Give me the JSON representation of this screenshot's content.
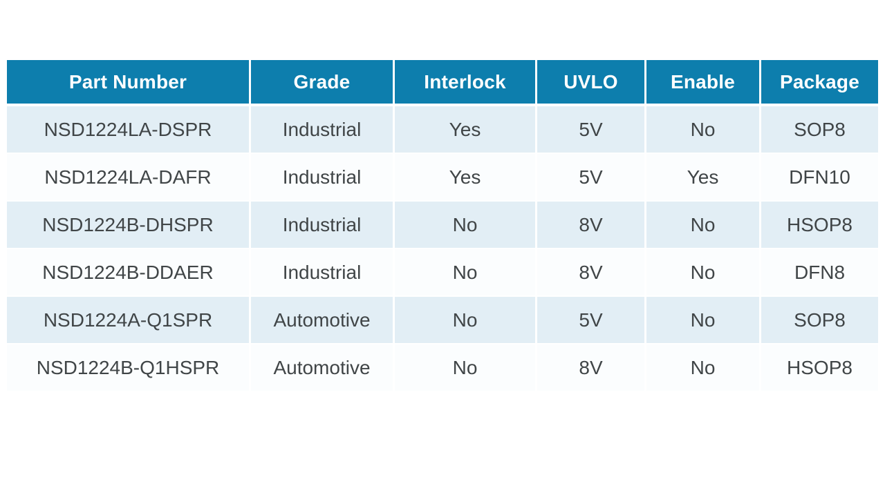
{
  "table": {
    "name": "part-selection-table",
    "columns": [
      "Part Number",
      "Grade",
      "Interlock",
      "UVLO",
      "Enable",
      "Package"
    ],
    "rows": [
      [
        "NSD1224LA-DSPR",
        "Industrial",
        "Yes",
        "5V",
        "No",
        "SOP8"
      ],
      [
        "NSD1224LA-DAFR",
        "Industrial",
        "Yes",
        "5V",
        "Yes",
        "DFN10"
      ],
      [
        "NSD1224B-DHSPR",
        "Industrial",
        "No",
        "8V",
        "No",
        "HSOP8"
      ],
      [
        "NSD1224B-DDAER",
        "Industrial",
        "No",
        "8V",
        "No",
        "DFN8"
      ],
      [
        "NSD1224A-Q1SPR",
        "Automotive",
        "No",
        "5V",
        "No",
        "SOP8"
      ],
      [
        "NSD1224B-Q1HSPR",
        "Automotive",
        "No",
        "8V",
        "No",
        "HSOP8"
      ]
    ],
    "colors": {
      "header_bg": "#0D7EAD",
      "header_text": "#FFFFFF",
      "row_alt_bg": "#E2EEF5",
      "row_bg": "#FBFDFE",
      "body_text": "#404547"
    }
  }
}
